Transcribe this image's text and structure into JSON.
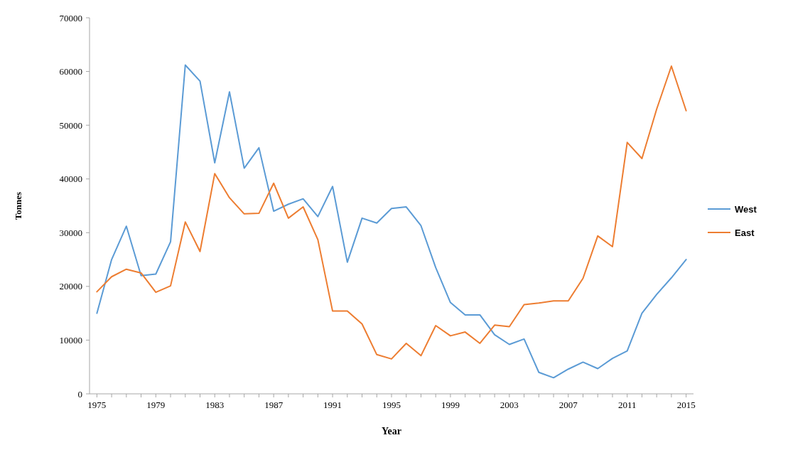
{
  "chart_data": {
    "type": "line",
    "xlabel": "Year",
    "ylabel": "Tonnes",
    "x": [
      1975,
      1976,
      1977,
      1978,
      1979,
      1980,
      1981,
      1982,
      1983,
      1984,
      1985,
      1986,
      1987,
      1988,
      1989,
      1990,
      1991,
      1992,
      1993,
      1994,
      1995,
      1996,
      1997,
      1998,
      1999,
      2000,
      2001,
      2002,
      2003,
      2004,
      2005,
      2006,
      2007,
      2008,
      2009,
      2010,
      2011,
      2012,
      2013,
      2014,
      2015
    ],
    "series": [
      {
        "name": "West",
        "color": "#5b9bd5",
        "values": [
          15000,
          25000,
          31200,
          22000,
          22300,
          28300,
          61200,
          58200,
          43000,
          56200,
          42000,
          45800,
          34000,
          35300,
          36300,
          33000,
          38600,
          24500,
          32700,
          31800,
          34500,
          34800,
          31300,
          23500,
          17000,
          14700,
          14700,
          11000,
          9200,
          10200,
          4000,
          3000,
          4600,
          5900,
          4700,
          6600,
          8000,
          15000,
          18500,
          21600,
          25000
        ]
      },
      {
        "name": "East",
        "color": "#ed7d31",
        "values": [
          19000,
          21800,
          23200,
          22500,
          18900,
          20100,
          32000,
          26500,
          41000,
          36500,
          33500,
          33600,
          39200,
          32700,
          34800,
          28700,
          15400,
          15400,
          13000,
          7300,
          6500,
          9400,
          7100,
          12700,
          10800,
          11500,
          9400,
          12800,
          12500,
          16600,
          16900,
          17300,
          17300,
          21500,
          29400,
          27400,
          46800,
          43800,
          53000,
          61000,
          52700
        ]
      }
    ],
    "xlim": [
      1974.5,
      2015.5
    ],
    "xticks": [
      1975,
      {
        "value": 1976,
        "label": null
      },
      {
        "value": 1977,
        "label": null
      },
      {
        "value": 1978,
        "label": null
      },
      1979,
      {
        "value": 1980,
        "label": null
      },
      {
        "value": 1981,
        "label": null
      },
      {
        "value": 1982,
        "label": null
      },
      1983,
      {
        "value": 1984,
        "label": null
      },
      {
        "value": 1985,
        "label": null
      },
      {
        "value": 1986,
        "label": null
      },
      1987,
      {
        "value": 1988,
        "label": null
      },
      {
        "value": 1989,
        "label": null
      },
      {
        "value": 1990,
        "label": null
      },
      1991,
      {
        "value": 1992,
        "label": null
      },
      {
        "value": 1993,
        "label": null
      },
      {
        "value": 1994,
        "label": null
      },
      1995,
      {
        "value": 1996,
        "label": null
      },
      {
        "value": 1997,
        "label": null
      },
      {
        "value": 1998,
        "label": null
      },
      1999,
      {
        "value": 2000,
        "label": null
      },
      {
        "value": 2001,
        "label": null
      },
      {
        "value": 2002,
        "label": null
      },
      2003,
      {
        "value": 2004,
        "label": null
      },
      {
        "value": 2005,
        "label": null
      },
      {
        "value": 2006,
        "label": null
      },
      2007,
      {
        "value": 2008,
        "label": null
      },
      {
        "value": 2009,
        "label": null
      },
      {
        "value": 2010,
        "label": null
      },
      2011,
      {
        "value": 2012,
        "label": null
      },
      {
        "value": 2013,
        "label": null
      },
      {
        "value": 2014,
        "label": null
      },
      2015
    ],
    "ylim": [
      0,
      70000
    ],
    "yticks": [
      0,
      10000,
      20000,
      30000,
      40000,
      50000,
      60000,
      70000
    ],
    "grid": false,
    "legend": "right",
    "line_style": "solid"
  }
}
